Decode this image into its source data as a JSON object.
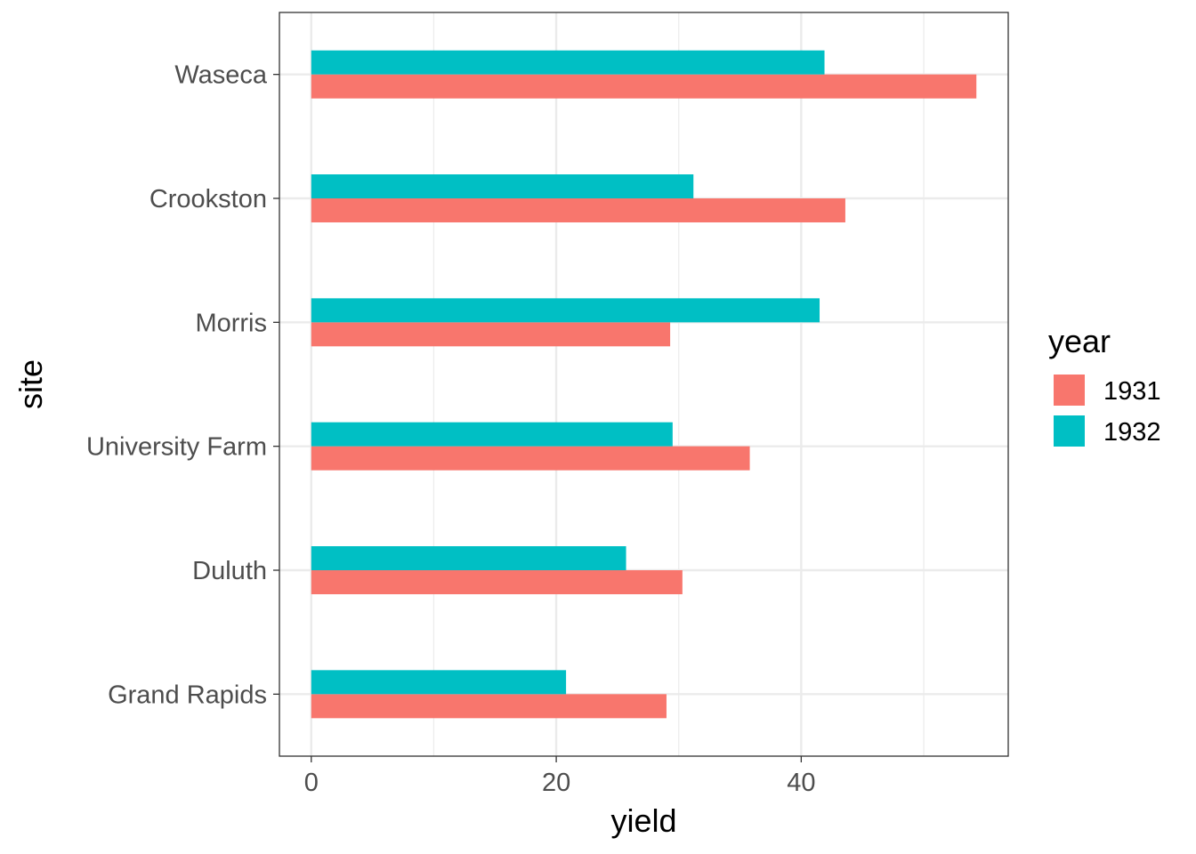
{
  "chart_data": {
    "type": "bar",
    "orientation": "horizontal",
    "categories": [
      "Grand Rapids",
      "Duluth",
      "University Farm",
      "Morris",
      "Crookston",
      "Waseca"
    ],
    "series": [
      {
        "name": "1931",
        "color": "#F8766D",
        "values": [
          29.0,
          30.3,
          35.8,
          29.3,
          43.6,
          54.3
        ]
      },
      {
        "name": "1932",
        "color": "#00BFC4",
        "values": [
          20.8,
          25.7,
          29.5,
          41.5,
          31.2,
          41.9
        ]
      }
    ],
    "xlabel": "yield",
    "ylabel": "site",
    "xlim": [
      -2.6,
      56.9
    ],
    "xticks": [
      0,
      20,
      40
    ],
    "x_minor_ticks": [
      10,
      30,
      50
    ],
    "grid": true,
    "legend": {
      "title": "year",
      "position": "right"
    }
  }
}
